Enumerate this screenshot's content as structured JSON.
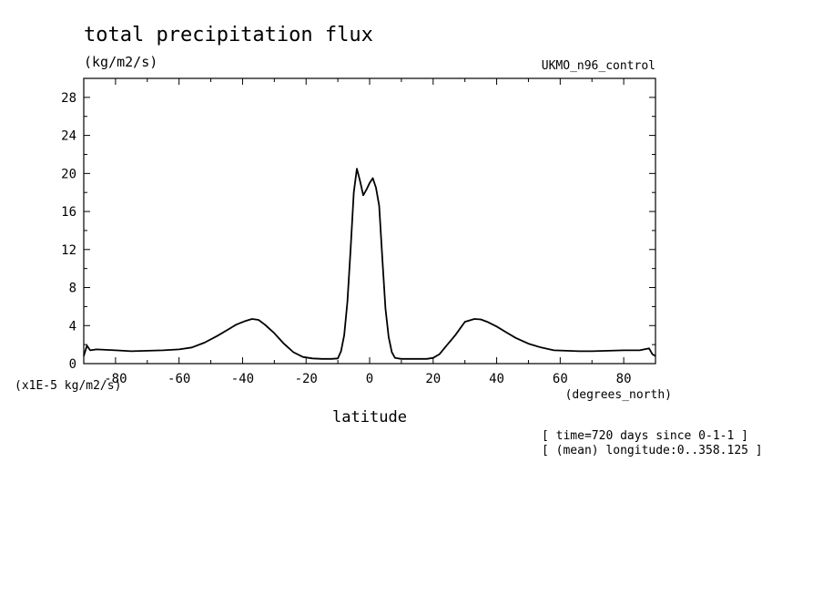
{
  "title": "total precipitation flux",
  "units": "(kg/m2/s)",
  "dataset": "UKMO_n96_control",
  "scale_note": "(x1E-5 kg/m2/s)",
  "x_units": "(degrees_north)",
  "xlabel": "latitude",
  "footnotes": [
    "[ time=720 days since 0-1-1 ]",
    "[ (mean) longitude:0..358.125 ]"
  ],
  "chart_data": {
    "type": "line",
    "title": "total precipitation flux",
    "xlabel": "latitude",
    "ylabel": "(kg/m2/s)",
    "xlim": [
      -90,
      90
    ],
    "ylim": [
      0,
      30
    ],
    "x_ticks": [
      -80,
      -60,
      -40,
      -20,
      0,
      20,
      40,
      60,
      80
    ],
    "x_tick_labels": [
      "-80",
      "-60",
      "-40",
      "-20",
      "0",
      "20",
      "40",
      "60",
      "80"
    ],
    "y_ticks": [
      0,
      4,
      8,
      12,
      16,
      20,
      24,
      28
    ],
    "y_tick_labels": [
      "0",
      "4",
      "8",
      "12",
      "16",
      "20",
      "24",
      "28"
    ],
    "grid": false,
    "series": [
      {
        "x": [
          -90,
          -89,
          -88,
          -86,
          -80,
          -75,
          -70,
          -65,
          -60,
          -56,
          -52,
          -48,
          -45,
          -42,
          -39,
          -37,
          -35,
          -33,
          -30,
          -27,
          -24,
          -21,
          -18,
          -15,
          -12,
          -10,
          -9,
          -8,
          -7,
          -6,
          -5,
          -4,
          -3,
          -2,
          -1,
          0,
          1,
          2,
          3,
          4,
          5,
          6,
          7,
          8,
          9,
          10,
          11,
          12,
          15,
          18,
          20,
          22,
          24,
          27,
          30,
          33,
          35,
          37,
          40,
          43,
          46,
          50,
          54,
          58,
          62,
          66,
          70,
          75,
          80,
          85,
          88,
          89,
          90
        ],
        "y": [
          0.8,
          1.9,
          1.4,
          1.5,
          1.4,
          1.3,
          1.35,
          1.4,
          1.5,
          1.7,
          2.2,
          2.9,
          3.5,
          4.1,
          4.5,
          4.7,
          4.6,
          4.1,
          3.2,
          2.1,
          1.2,
          0.7,
          0.55,
          0.5,
          0.5,
          0.55,
          1.3,
          3.0,
          6.5,
          12.0,
          18.0,
          20.5,
          19.2,
          17.7,
          18.3,
          19.0,
          19.5,
          18.5,
          16.6,
          11.0,
          5.8,
          2.8,
          1.2,
          0.6,
          0.55,
          0.5,
          0.5,
          0.5,
          0.5,
          0.5,
          0.6,
          1.0,
          1.8,
          3.0,
          4.4,
          4.7,
          4.65,
          4.4,
          3.9,
          3.3,
          2.7,
          2.1,
          1.7,
          1.4,
          1.35,
          1.3,
          1.3,
          1.35,
          1.4,
          1.4,
          1.6,
          1.0,
          0.8
        ]
      }
    ]
  }
}
